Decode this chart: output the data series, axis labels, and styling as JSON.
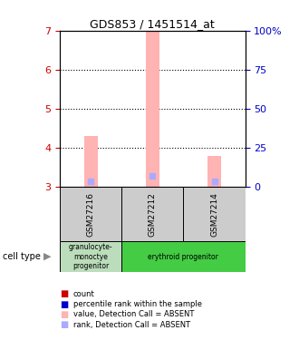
{
  "title": "GDS853 / 1451514_at",
  "samples": [
    "GSM27216",
    "GSM27212",
    "GSM27214"
  ],
  "bar_values": [
    4.3,
    7.0,
    3.8
  ],
  "bar_base": 3.0,
  "rank_values": [
    3.15,
    3.28,
    3.15
  ],
  "ylim_left": [
    3,
    7
  ],
  "ylim_right": [
    0,
    100
  ],
  "yticks_left": [
    3,
    4,
    5,
    6,
    7
  ],
  "yticks_right": [
    0,
    25,
    50,
    75,
    100
  ],
  "ytick_labels_right": [
    "0",
    "25",
    "50",
    "75",
    "100%"
  ],
  "bar_color": "#ffb3b3",
  "rank_color": "#aaaaff",
  "sample_box_color": "#cccccc",
  "cell_types": [
    {
      "label": "granulocyte-\nmonoctye\nprogenitor",
      "start": 0,
      "end": 1,
      "color": "#bbddbb"
    },
    {
      "label": "erythroid progenitor",
      "start": 1,
      "end": 3,
      "color": "#44cc44"
    }
  ],
  "legend_items": [
    {
      "color": "#cc0000",
      "label": "count"
    },
    {
      "color": "#0000cc",
      "label": "percentile rank within the sample"
    },
    {
      "color": "#ffb3b3",
      "label": "value, Detection Call = ABSENT"
    },
    {
      "color": "#aaaaff",
      "label": "rank, Detection Call = ABSENT"
    }
  ],
  "cell_type_label": "cell type",
  "left_axis_color": "#cc0000",
  "right_axis_color": "#0000cc",
  "title_fontsize": 9
}
